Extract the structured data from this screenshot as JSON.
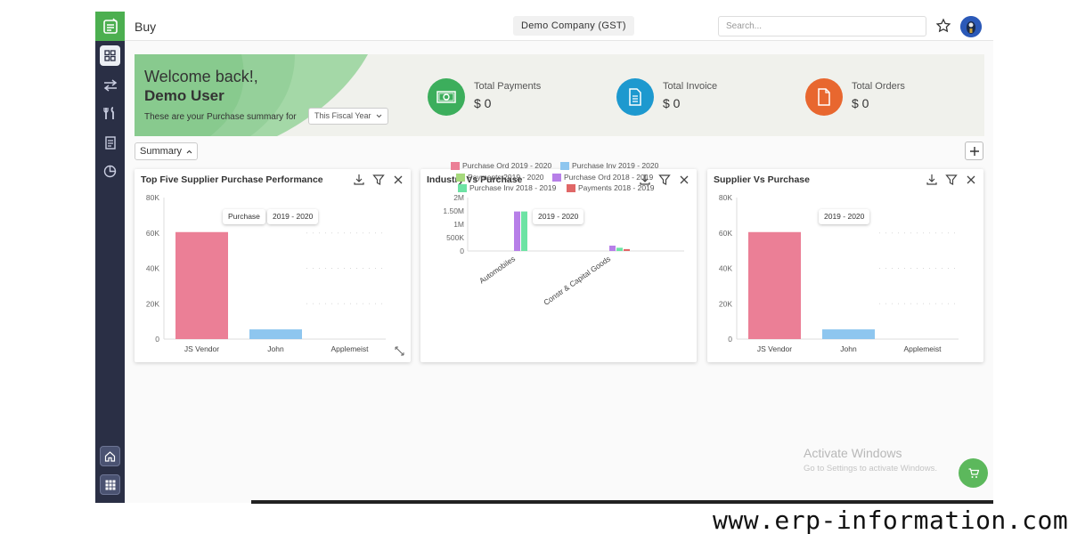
{
  "sidebar": {
    "items": [
      {
        "name": "dashboard",
        "icon": "grid-icon",
        "active": true
      },
      {
        "name": "transfer",
        "icon": "arrows-icon"
      },
      {
        "name": "tools",
        "icon": "tools-icon"
      },
      {
        "name": "reports",
        "icon": "document-icon"
      },
      {
        "name": "analytics",
        "icon": "pie-chart-icon"
      }
    ],
    "bottom_items": [
      {
        "name": "home",
        "icon": "home-icon"
      },
      {
        "name": "apps",
        "icon": "apps-grid-icon"
      }
    ]
  },
  "header": {
    "title": "Buy",
    "company": "Demo Company (GST)",
    "search_placeholder": "Search..."
  },
  "banner": {
    "welcome": "Welcome back!,",
    "user": "Demo User",
    "summary_text": "These are your Purchase summary for",
    "period_select": "This Fiscal Year",
    "stats": [
      {
        "label": "Total Payments",
        "value": "$ 0",
        "color": "#3cae5c",
        "icon": "money-icon"
      },
      {
        "label": "Total Invoice",
        "value": "$ 0",
        "color": "#1d99cf",
        "icon": "invoice-icon"
      },
      {
        "label": "Total Orders",
        "value": "$ 0",
        "color": "#e8672f",
        "icon": "order-icon"
      }
    ]
  },
  "summary_dropdown": "Summary",
  "cards": {
    "top_five": {
      "title": "Top Five Supplier Purchase Performance",
      "tooltip_label": "Purchase",
      "tooltip_period": "2019 - 2020"
    },
    "industry": {
      "title": "Industry Vs Purchase",
      "tooltip_period": "2019 - 2020"
    },
    "supplier": {
      "title": "Supplier Vs Purchase",
      "tooltip_period": "2019 - 2020"
    }
  },
  "chart_data": [
    {
      "type": "bar",
      "title": "Top Five Supplier Purchase Performance",
      "categories": [
        "JS Vendor",
        "John",
        "Applemeist"
      ],
      "series": [
        {
          "name": "Purchase",
          "values": [
            60500,
            5500,
            0
          ],
          "colors": [
            "#eb7f96",
            "#8ec6ef",
            "#8ec6ef"
          ]
        }
      ],
      "y_ticks": [
        "80K",
        "60K",
        "40K",
        "20K",
        "0"
      ],
      "ylim": [
        0,
        80000
      ]
    },
    {
      "type": "bar",
      "title": "Industry Vs Purchase",
      "categories": [
        "Automobiles",
        "Constr & Capital Goods"
      ],
      "y_ticks": [
        "2M",
        "1.50M",
        "1M",
        "500K",
        "0"
      ],
      "ylim": [
        0,
        2000000
      ],
      "series": [
        {
          "name": "Purchase Ord 2019 - 2020",
          "color": "#eb7f96",
          "values": [
            0,
            0
          ]
        },
        {
          "name": "Purchase Inv 2019 - 2020",
          "color": "#8ec6ef",
          "values": [
            0,
            0
          ]
        },
        {
          "name": "Payments 2019 - 2020",
          "color": "#a6d97c",
          "values": [
            0,
            0
          ]
        },
        {
          "name": "Purchase Ord 2018 - 2019",
          "color": "#b77fe8",
          "values": [
            1480000,
            200000
          ]
        },
        {
          "name": "Purchase Inv 2018 - 2019",
          "color": "#6de3a4",
          "values": [
            1480000,
            120000
          ]
        },
        {
          "name": "Payments 2018 - 2019",
          "color": "#e06767",
          "values": [
            0,
            70000
          ]
        }
      ],
      "legend_position": "bottom"
    },
    {
      "type": "bar",
      "title": "Supplier Vs Purchase",
      "categories": [
        "JS Vendor",
        "John",
        "Applemeist"
      ],
      "series": [
        {
          "name": "Purchase",
          "values": [
            60500,
            5500,
            0
          ],
          "colors": [
            "#eb7f96",
            "#8ec6ef",
            "#8ec6ef"
          ]
        }
      ],
      "y_ticks": [
        "80K",
        "60K",
        "40K",
        "20K",
        "0"
      ],
      "ylim": [
        0,
        80000
      ]
    }
  ],
  "windows_notice": {
    "title": "Activate Windows",
    "subtitle": "Go to Settings to activate Windows."
  },
  "watermark": "www.erp-information.com"
}
